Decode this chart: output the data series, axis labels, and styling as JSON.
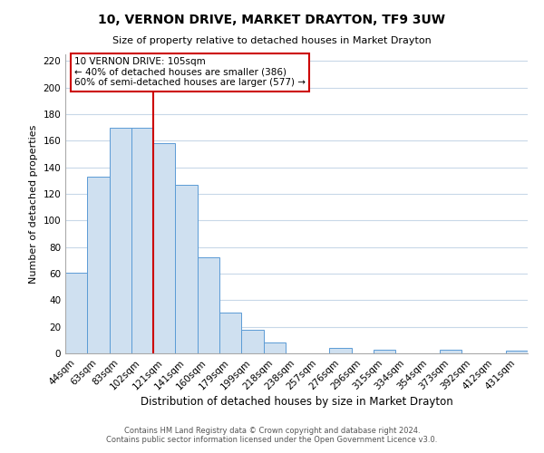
{
  "title": "10, VERNON DRIVE, MARKET DRAYTON, TF9 3UW",
  "subtitle": "Size of property relative to detached houses in Market Drayton",
  "xlabel": "Distribution of detached houses by size in Market Drayton",
  "ylabel": "Number of detached properties",
  "bar_labels": [
    "44sqm",
    "63sqm",
    "83sqm",
    "102sqm",
    "121sqm",
    "141sqm",
    "160sqm",
    "179sqm",
    "199sqm",
    "218sqm",
    "238sqm",
    "257sqm",
    "276sqm",
    "296sqm",
    "315sqm",
    "334sqm",
    "354sqm",
    "373sqm",
    "392sqm",
    "412sqm",
    "431sqm"
  ],
  "bar_values": [
    61,
    133,
    170,
    170,
    158,
    127,
    72,
    31,
    18,
    8,
    0,
    0,
    4,
    0,
    3,
    0,
    0,
    3,
    0,
    0,
    2
  ],
  "bar_color": "#cfe0f0",
  "bar_edge_color": "#5b9bd5",
  "vline_x": 3.5,
  "vline_color": "#cc0000",
  "ylim": [
    0,
    225
  ],
  "yticks": [
    0,
    20,
    40,
    60,
    80,
    100,
    120,
    140,
    160,
    180,
    200,
    220
  ],
  "annotation_title": "10 VERNON DRIVE: 105sqm",
  "annotation_line1": "← 40% of detached houses are smaller (386)",
  "annotation_line2": "60% of semi-detached houses are larger (577) →",
  "annotation_box_color": "#ffffff",
  "annotation_box_edge": "#cc0000",
  "footer1": "Contains HM Land Registry data © Crown copyright and database right 2024.",
  "footer2": "Contains public sector information licensed under the Open Government Licence v3.0.",
  "background_color": "#ffffff",
  "grid_color": "#c8d8e8"
}
